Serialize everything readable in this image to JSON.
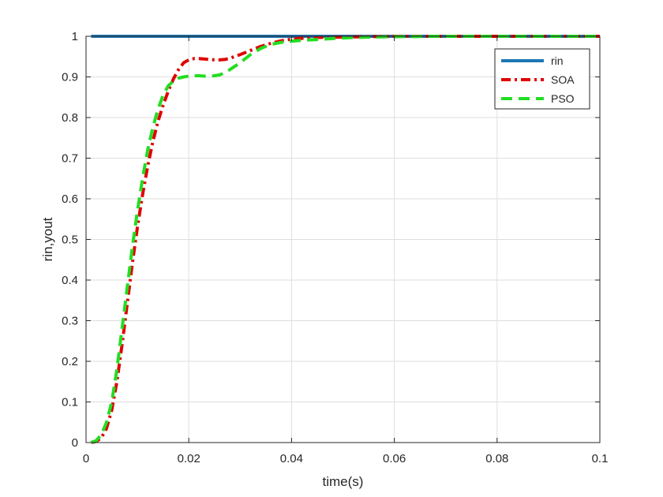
{
  "chart_data": {
    "type": "line",
    "xlabel": "time(s)",
    "ylabel": "rin,yout",
    "xlim": [
      0,
      0.1
    ],
    "ylim": [
      0,
      1
    ],
    "grid": true,
    "legend_position": "top-right",
    "x_ticks": [
      {
        "value": 0,
        "label": "0"
      },
      {
        "value": 0.02,
        "label": "0.02"
      },
      {
        "value": 0.04,
        "label": "0.04"
      },
      {
        "value": 0.06,
        "label": "0.06"
      },
      {
        "value": 0.08,
        "label": "0.08"
      },
      {
        "value": 0.1,
        "label": "0.1"
      }
    ],
    "y_ticks": [
      {
        "value": 0,
        "label": "0"
      },
      {
        "value": 0.1,
        "label": "0.1"
      },
      {
        "value": 0.2,
        "label": "0.2"
      },
      {
        "value": 0.3,
        "label": "0.3"
      },
      {
        "value": 0.4,
        "label": "0.4"
      },
      {
        "value": 0.5,
        "label": "0.5"
      },
      {
        "value": 0.6,
        "label": "0.6"
      },
      {
        "value": 0.7,
        "label": "0.7"
      },
      {
        "value": 0.8,
        "label": "0.8"
      },
      {
        "value": 0.9,
        "label": "0.9"
      },
      {
        "value": 1,
        "label": "1"
      }
    ],
    "series": [
      {
        "name": "rin",
        "color": "#1f77b4",
        "style": "solid",
        "x": [
          0.001,
          0.1
        ],
        "y": [
          1,
          1
        ]
      },
      {
        "name": "SOA",
        "color": "#e00000",
        "style": "dashdot",
        "x": [
          0.001,
          0.002,
          0.003,
          0.004,
          0.005,
          0.006,
          0.007,
          0.008,
          0.009,
          0.01,
          0.011,
          0.012,
          0.013,
          0.014,
          0.015,
          0.016,
          0.017,
          0.018,
          0.019,
          0.02,
          0.021,
          0.022,
          0.023,
          0.024,
          0.025,
          0.026,
          0.027,
          0.028,
          0.03,
          0.032,
          0.034,
          0.036,
          0.038,
          0.04,
          0.042,
          0.045,
          0.05,
          0.055,
          0.06,
          0.07,
          0.08,
          0.09,
          0.1
        ],
        "y": [
          0,
          0.003,
          0.012,
          0.035,
          0.08,
          0.15,
          0.24,
          0.34,
          0.44,
          0.53,
          0.61,
          0.68,
          0.74,
          0.79,
          0.83,
          0.865,
          0.895,
          0.918,
          0.935,
          0.942,
          0.945,
          0.945,
          0.944,
          0.943,
          0.942,
          0.942,
          0.943,
          0.946,
          0.955,
          0.965,
          0.975,
          0.983,
          0.989,
          0.993,
          0.995,
          0.997,
          0.998,
          0.999,
          1.0,
          1.0,
          1.0,
          1.0,
          1.0
        ]
      },
      {
        "name": "PSO",
        "color": "#22dd22",
        "style": "dashed",
        "x": [
          0.001,
          0.002,
          0.003,
          0.004,
          0.005,
          0.006,
          0.007,
          0.008,
          0.009,
          0.01,
          0.011,
          0.012,
          0.013,
          0.014,
          0.015,
          0.016,
          0.017,
          0.018,
          0.019,
          0.02,
          0.021,
          0.022,
          0.023,
          0.024,
          0.025,
          0.026,
          0.027,
          0.028,
          0.03,
          0.032,
          0.034,
          0.036,
          0.038,
          0.04,
          0.042,
          0.045,
          0.05,
          0.055,
          0.06,
          0.07,
          0.08,
          0.09,
          0.1
        ],
        "y": [
          0,
          0.005,
          0.02,
          0.05,
          0.1,
          0.18,
          0.28,
          0.38,
          0.48,
          0.57,
          0.65,
          0.72,
          0.775,
          0.82,
          0.855,
          0.878,
          0.89,
          0.897,
          0.9,
          0.902,
          0.903,
          0.903,
          0.902,
          0.902,
          0.903,
          0.905,
          0.91,
          0.918,
          0.935,
          0.955,
          0.97,
          0.98,
          0.985,
          0.988,
          0.99,
          0.992,
          0.996,
          0.998,
          0.999,
          1.0,
          1.0,
          1.0,
          1.0
        ]
      }
    ]
  }
}
